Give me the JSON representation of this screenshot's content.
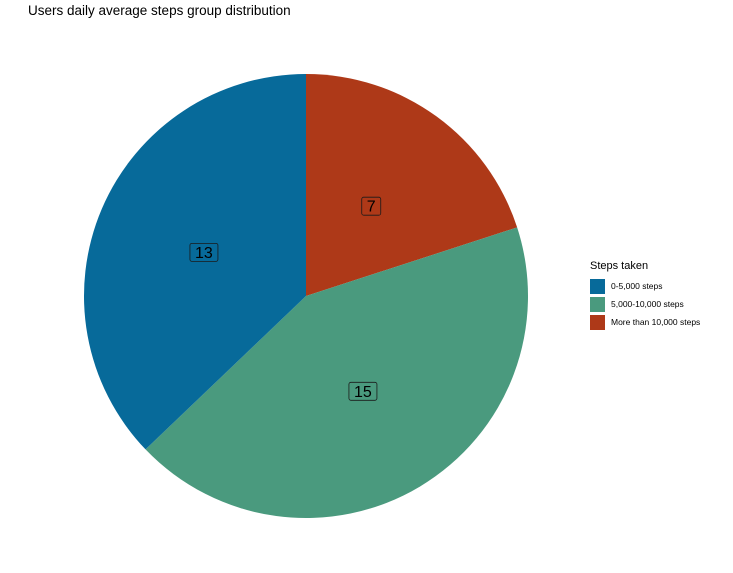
{
  "chart_data": {
    "type": "pie",
    "title": "Users daily average steps group distribution",
    "slices": [
      {
        "label": "More than 10,000 steps",
        "value": 7,
        "color": "#AE3918"
      },
      {
        "label": "5,000-10,000 steps",
        "value": 15,
        "color": "#4A9A7E"
      },
      {
        "label": "0-5,000 steps",
        "value": 13,
        "color": "#076A9A"
      }
    ],
    "legend": {
      "title": "Steps taken",
      "placement": "right",
      "entries": [
        {
          "label": "0-5,000 steps",
          "color": "#076A9A"
        },
        {
          "label": "5,000-10,000 steps",
          "color": "#4A9A7E"
        },
        {
          "label": "More than 10,000 steps",
          "color": "#AE3918"
        }
      ]
    }
  }
}
